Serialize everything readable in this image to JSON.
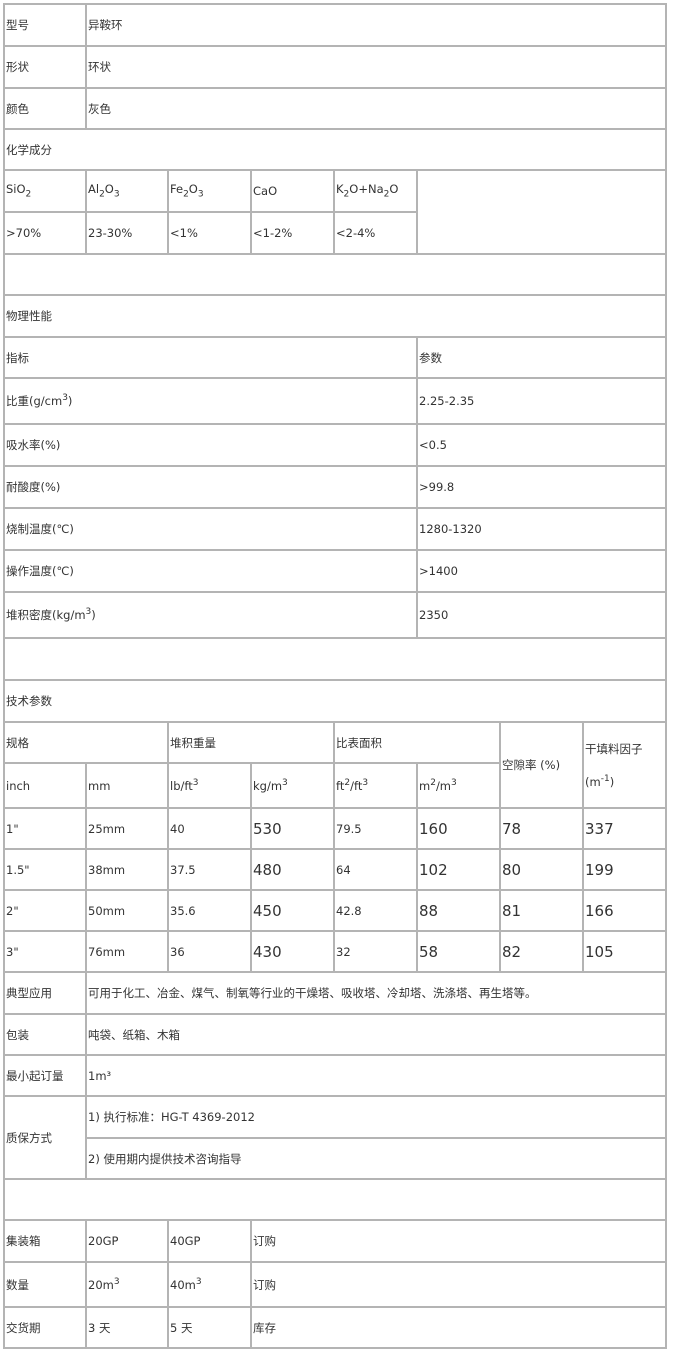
{
  "basic": [
    {
      "label": "型号",
      "value": "异鞍环"
    },
    {
      "label": "形状",
      "value": "环状"
    },
    {
      "label": "颜色",
      "value": "灰色"
    }
  ],
  "chem": {
    "title": "化学成分",
    "headers": [
      "SiO",
      "Al",
      "Fe",
      "CaO",
      "K"
    ],
    "values": [
      ">70%",
      "23-30%",
      "<1%",
      "<1-2%",
      "<2-4%"
    ]
  },
  "phys": {
    "title": "物理性能",
    "head": [
      "指标",
      "参数"
    ],
    "rows": [
      [
        "比重(g/cm",
        "2.25-2.35"
      ],
      [
        "吸水率(%)",
        "<0.5"
      ],
      [
        "耐酸度(%)",
        ">99.8"
      ],
      [
        "烧制温度(℃)",
        "1280-1320"
      ],
      [
        "操作温度(℃)",
        ">1400"
      ],
      [
        "堆积密度(kg/m",
        "2350"
      ]
    ]
  },
  "tech": {
    "title": "技术参数",
    "groups": [
      "规格",
      "堆积重量",
      "比表面积",
      "空隙率 (%)",
      "干填料因子 (m"
    ],
    "units": [
      "inch",
      "mm",
      "lb/ft",
      "kg/m",
      "ft",
      "m"
    ],
    "rows": [
      [
        "1\"",
        "25mm",
        "40",
        "530",
        "79.5",
        "160",
        "78",
        "337"
      ],
      [
        "1.5\"",
        "38mm",
        "37.5",
        "480",
        "64",
        "102",
        "80",
        "199"
      ],
      [
        "2\"",
        "50mm",
        "35.6",
        "450",
        "42.8",
        "88",
        "81",
        "166"
      ],
      [
        "3\"",
        "76mm",
        "36",
        "430",
        "32",
        "58",
        "82",
        "105"
      ]
    ]
  },
  "info": [
    {
      "label": "典型应用",
      "value": "可用于化工、冶金、煤气、制氧等行业的干燥塔、吸收塔、冷却塔、洗涤塔、再生塔等。"
    },
    {
      "label": "包装",
      "value": "吨袋、纸箱、木箱"
    },
    {
      "label": "最小起订量",
      "value": "1m³"
    }
  ],
  "warranty": {
    "label": "质保方式",
    "items": [
      "1) 执行标准：HG-T 4369-2012",
      "2) 使用期内提供技术咨询指导"
    ]
  },
  "ship": [
    [
      "集装箱",
      "20GP",
      "40GP",
      "订购"
    ],
    [
      "数量",
      "20m",
      "40m",
      "订购"
    ],
    [
      "交货期",
      "3 天",
      "5 天",
      "库存"
    ]
  ]
}
